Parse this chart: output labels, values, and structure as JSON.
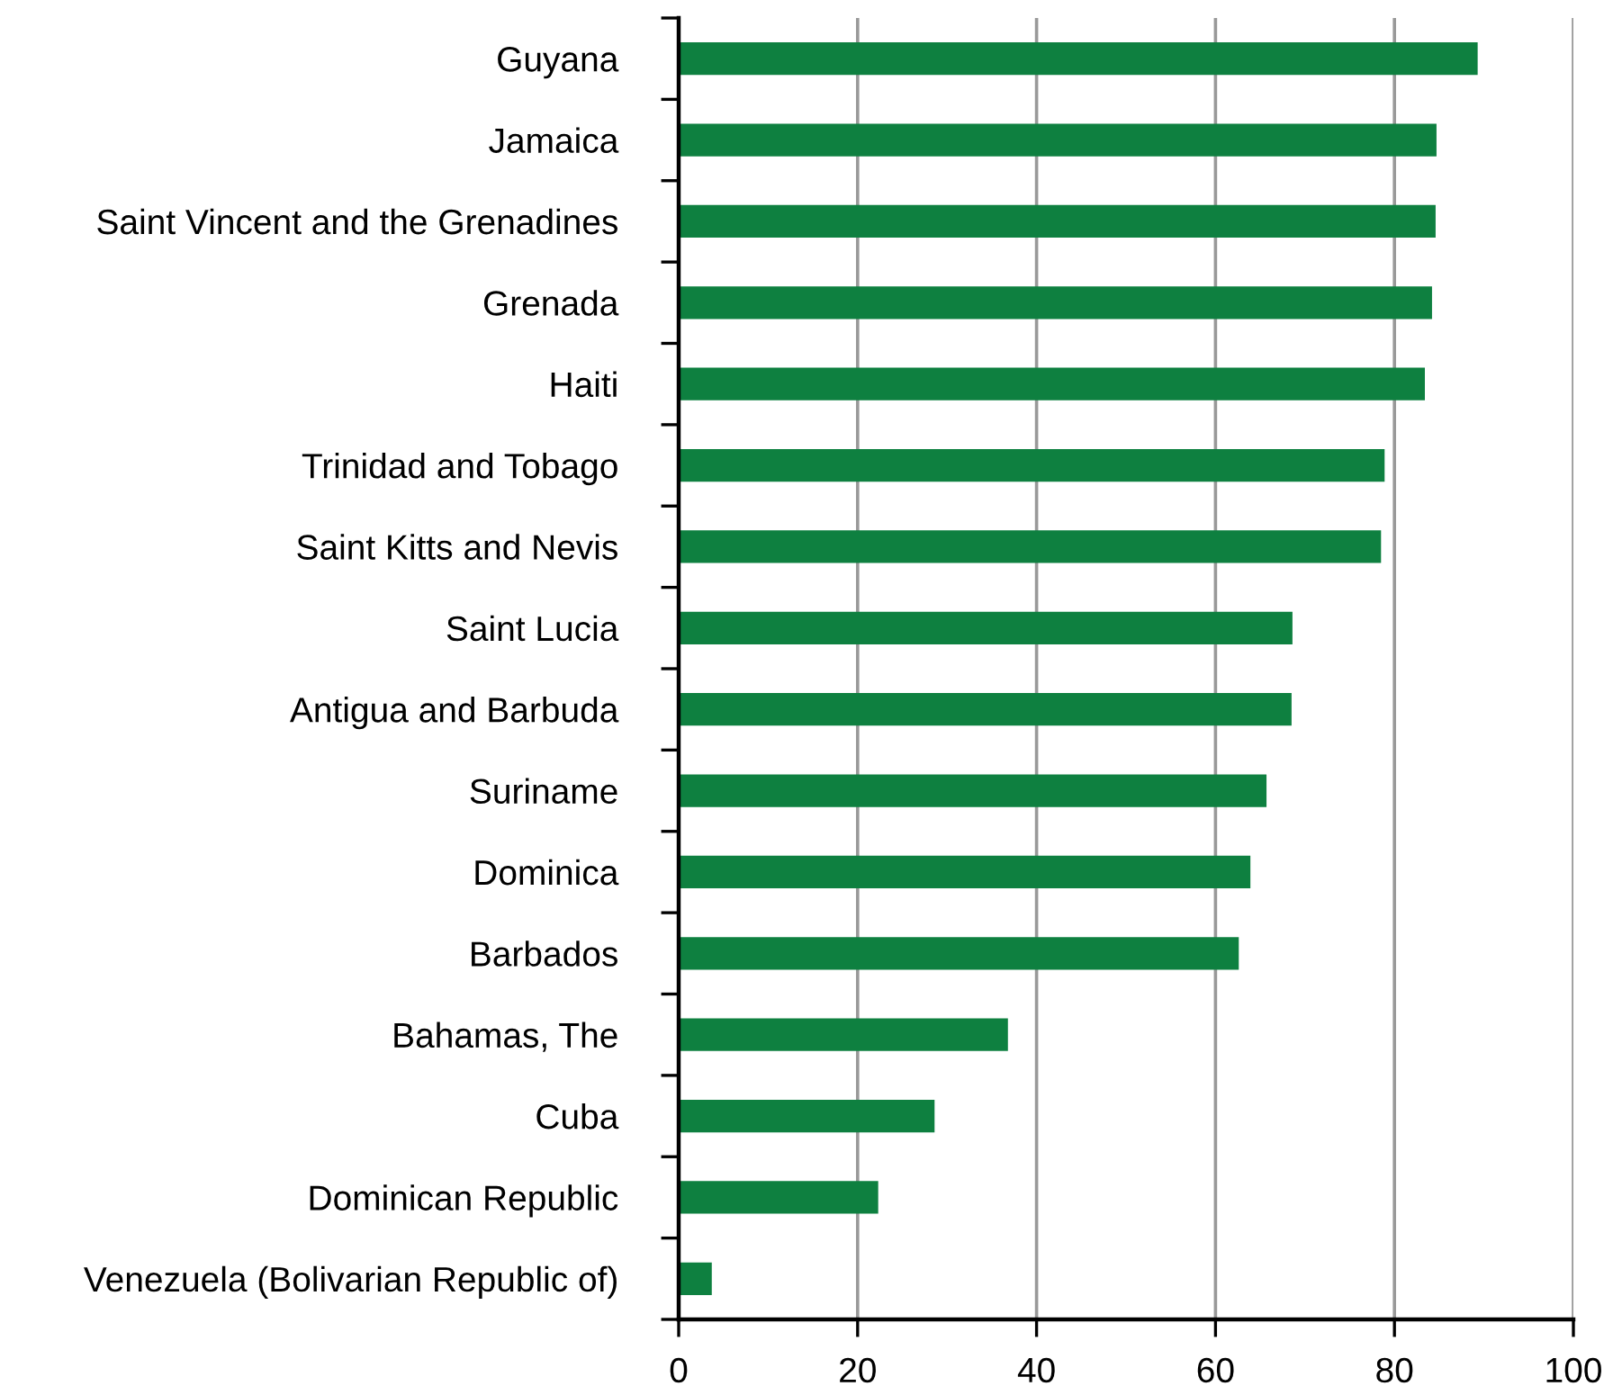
{
  "chart_data": {
    "type": "bar",
    "orientation": "horizontal",
    "categories": [
      "Guyana",
      "Jamaica",
      "Saint Vincent and the Grenadines",
      "Grenada",
      "Haiti",
      "Trinidad and Tobago",
      "Saint Kitts and Nevis",
      "Saint Lucia",
      "Antigua and Barbuda",
      "Suriname",
      "Dominica",
      "Barbados",
      "Bahamas, The",
      "Cuba",
      "Dominican Republic",
      "Venezuela (Bolivarian Republic of)"
    ],
    "values": [
      89.3,
      84.7,
      84.6,
      84.2,
      83.4,
      78.9,
      78.5,
      68.6,
      68.5,
      65.7,
      63.9,
      62.6,
      36.8,
      28.6,
      22.3,
      3.7
    ],
    "color": "#0e8040",
    "xlim": [
      0,
      100
    ],
    "xticks": [
      0,
      20,
      40,
      60,
      80,
      100
    ],
    "grid": "x"
  }
}
